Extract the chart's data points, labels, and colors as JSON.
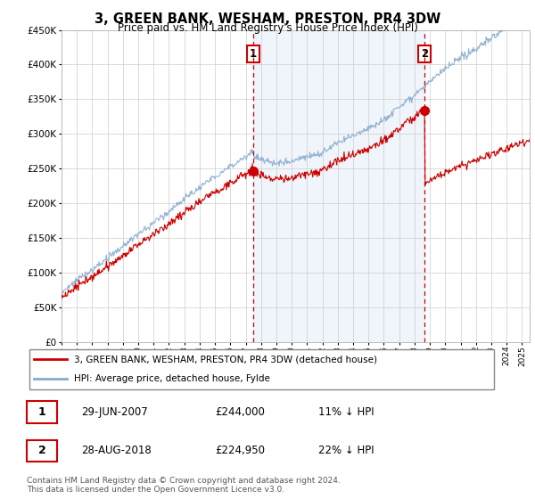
{
  "title": "3, GREEN BANK, WESHAM, PRESTON, PR4 3DW",
  "subtitle": "Price paid vs. HM Land Registry's House Price Index (HPI)",
  "ylim": [
    0,
    450000
  ],
  "xlim_start": 1995.0,
  "xlim_end": 2025.5,
  "sale1_date": 2007.49,
  "sale1_price": 244000,
  "sale2_date": 2018.66,
  "sale2_price": 224950,
  "legend_line1": "3, GREEN BANK, WESHAM, PRESTON, PR4 3DW (detached house)",
  "legend_line2": "HPI: Average price, detached house, Fylde",
  "table_row1": [
    "1",
    "29-JUN-2007",
    "£244,000",
    "11% ↓ HPI"
  ],
  "table_row2": [
    "2",
    "28-AUG-2018",
    "£224,950",
    "22% ↓ HPI"
  ],
  "footnote": "Contains HM Land Registry data © Crown copyright and database right 2024.\nThis data is licensed under the Open Government Licence v3.0.",
  "color_red": "#cc0000",
  "color_blue": "#88aacc",
  "color_dashed": "#cc0000",
  "color_shade": "#ddeeff",
  "background_color": "#ffffff",
  "grid_color": "#cccccc"
}
